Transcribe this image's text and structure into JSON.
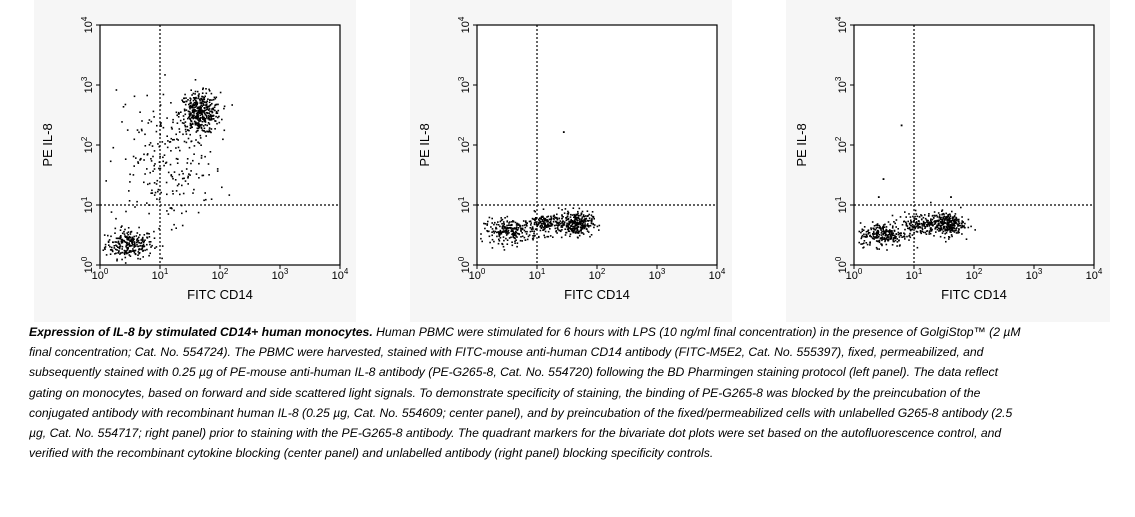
{
  "panels": [
    {
      "id": "left",
      "ylabel": "PE IL-8",
      "xlabel": "FITC CD14"
    },
    {
      "id": "center",
      "ylabel": "PE IL-8",
      "xlabel": "FITC CD14"
    },
    {
      "id": "right",
      "ylabel": "PE IL-8",
      "xlabel": "FITC CD14"
    }
  ],
  "axis_ticks": [
    "10^0",
    "10^1",
    "10^2",
    "10^3",
    "10^4"
  ],
  "chart_data": [
    {
      "type": "scatter",
      "xlabel": "FITC CD14",
      "ylabel": "PE IL-8",
      "xscale": "log",
      "yscale": "log",
      "xlim": [
        1,
        10000
      ],
      "ylim": [
        1,
        10000
      ],
      "xticks": [
        1,
        10,
        100,
        1000,
        10000
      ],
      "yticks": [
        1,
        10,
        100,
        1000,
        10000
      ],
      "quadrant_markers": {
        "x": 10,
        "y": 10
      },
      "clusters": [
        {
          "x_center": 3,
          "y_center": 2.3,
          "x_spread": 0.2,
          "y_spread": 0.12,
          "n": 260
        },
        {
          "x_center": 45,
          "y_center": 350,
          "x_spread": 0.17,
          "y_spread": 0.17,
          "n": 420
        },
        {
          "x_center": 7,
          "y_center": 60,
          "x_spread": 0.35,
          "y_spread": 0.6,
          "n": 130
        },
        {
          "x_center": 22,
          "y_center": 40,
          "x_spread": 0.35,
          "y_spread": 0.45,
          "n": 90
        }
      ]
    },
    {
      "type": "scatter",
      "xlabel": "FITC CD14",
      "ylabel": "PE IL-8",
      "xscale": "log",
      "yscale": "log",
      "xlim": [
        1,
        10000
      ],
      "ylim": [
        1,
        10000
      ],
      "xticks": [
        1,
        10,
        100,
        1000,
        10000
      ],
      "yticks": [
        1,
        10,
        100,
        1000,
        10000
      ],
      "quadrant_markers": {
        "x": 10,
        "y": 10
      },
      "clusters": [
        {
          "x_center": 3.5,
          "y_center": 3.8,
          "x_spread": 0.22,
          "y_spread": 0.1,
          "n": 230
        },
        {
          "x_center": 15,
          "y_center": 5,
          "x_spread": 0.2,
          "y_spread": 0.09,
          "n": 200
        },
        {
          "x_center": 45,
          "y_center": 5,
          "x_spread": 0.13,
          "y_spread": 0.1,
          "n": 260
        }
      ],
      "outliers": [
        {
          "x": 27,
          "y": 170
        }
      ]
    },
    {
      "type": "scatter",
      "xlabel": "FITC CD14",
      "ylabel": "PE IL-8",
      "xscale": "log",
      "yscale": "log",
      "xlim": [
        1,
        10000
      ],
      "ylim": [
        1,
        10000
      ],
      "xticks": [
        1,
        10,
        100,
        1000,
        10000
      ],
      "yticks": [
        1,
        10,
        100,
        1000,
        10000
      ],
      "quadrant_markers": {
        "x": 10,
        "y": 10
      },
      "clusters": [
        {
          "x_center": 3,
          "y_center": 3.3,
          "x_spread": 0.2,
          "y_spread": 0.1,
          "n": 240
        },
        {
          "x_center": 13,
          "y_center": 5,
          "x_spread": 0.2,
          "y_spread": 0.09,
          "n": 180
        },
        {
          "x_center": 35,
          "y_center": 5,
          "x_spread": 0.14,
          "y_spread": 0.1,
          "n": 260
        }
      ],
      "outliers": [
        {
          "x": 6,
          "y": 220
        },
        {
          "x": 3,
          "y": 28
        },
        {
          "x": 2.5,
          "y": 14
        },
        {
          "x": 40,
          "y": 14
        }
      ]
    }
  ],
  "caption": {
    "bold": "Expression of IL-8 by stimulated CD14+ human monocytes.",
    "text": " Human PBMC were stimulated for 6 hours with LPS (10 ng/ml final concentration) in the presence of GolgiStop™ (2 µM final concentration; Cat. No. 554724). The PBMC were harvested, stained with FITC-mouse anti-human CD14 antibody (FITC-M5E2, Cat. No. 555397), fixed, permeabilized, and subsequently stained with 0.25 µg of PE-mouse anti-human IL-8 antibody (PE-G265-8, Cat. No. 554720) following the BD Pharmingen staining protocol (left panel). The data reflect gating on monocytes, based on forward and side scattered light signals. To demonstrate specificity of staining, the binding of PE-G265-8 was blocked by the preincubation of the conjugated antibody with recombinant human IL-8 (0.25 µg, Cat. No. 554609; center panel), and by preincubation of the fixed/permeabilized cells with unlabelled G265-8 antibody (2.5 µg, Cat. No. 554717; right panel) prior to staining with the PE-G265-8 antibody. The quadrant markers for the bivariate dot plots were set based on the autofluorescence control, and verified with the recombinant cytokine blocking (center panel) and unlabelled antibody (right panel) blocking specificity controls."
  }
}
